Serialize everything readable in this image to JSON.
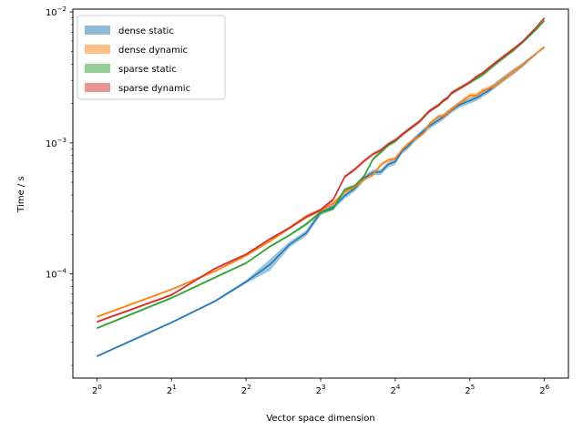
{
  "chart_data": {
    "type": "line",
    "xlabel": "Vector space dimension",
    "ylabel": "Time / s",
    "xscale": "log2",
    "yscale": "log10",
    "xlim": [
      0.8,
      80
    ],
    "ylim": [
      1.6e-05,
      0.0105
    ],
    "x_ticks": [
      {
        "value": 1,
        "base": "2",
        "exp": "0"
      },
      {
        "value": 2,
        "base": "2",
        "exp": "1"
      },
      {
        "value": 4,
        "base": "2",
        "exp": "2"
      },
      {
        "value": 8,
        "base": "2",
        "exp": "3"
      },
      {
        "value": 16,
        "base": "2",
        "exp": "4"
      },
      {
        "value": 32,
        "base": "2",
        "exp": "5"
      },
      {
        "value": 64,
        "base": "2",
        "exp": "6"
      }
    ],
    "y_ticks": [
      {
        "value": 0.0001,
        "base": "10",
        "exp": "−4"
      },
      {
        "value": 0.001,
        "base": "10",
        "exp": "−3"
      },
      {
        "value": 0.01,
        "base": "10",
        "exp": "−2"
      }
    ],
    "grid": false,
    "legend_position": "top-left",
    "series": [
      {
        "name": "dense static",
        "color": "#1f77b4",
        "band_color": "#8fbbd9",
        "x": [
          1,
          2,
          3,
          4,
          5,
          6,
          7,
          8,
          9,
          10,
          11,
          12,
          13,
          14,
          15,
          16,
          17,
          18,
          19,
          20,
          21,
          22,
          23,
          24,
          25,
          26,
          27,
          28,
          29,
          30,
          31,
          32,
          34,
          36,
          38,
          40,
          42,
          44,
          46,
          48,
          52,
          56,
          60,
          64
        ],
        "y": [
          2.35e-05,
          4.25e-05,
          6.2e-05,
          8.7e-05,
          0.000118,
          0.000168,
          0.000205,
          0.000295,
          0.000325,
          0.000395,
          0.00045,
          0.00054,
          0.000595,
          0.0006,
          0.000685,
          0.00072,
          0.00086,
          0.00094,
          0.00105,
          0.00115,
          0.00125,
          0.00135,
          0.00142,
          0.0015,
          0.00158,
          0.00168,
          0.00178,
          0.00186,
          0.00195,
          0.002,
          0.00205,
          0.0021,
          0.0022,
          0.00235,
          0.0025,
          0.0027,
          0.0029,
          0.0031,
          0.0033,
          0.0035,
          0.0039,
          0.0044,
          0.0049,
          0.0054
        ],
        "spread": [
          0.02,
          0.02,
          0.02,
          0.03,
          0.1,
          0.05,
          0.05,
          0.05,
          0.05,
          0.05,
          0.05,
          0.05,
          0.05,
          0.05,
          0.05,
          0.05,
          0.05,
          0.05,
          0.05,
          0.05,
          0.05,
          0.05,
          0.05,
          0.05,
          0.05,
          0.05,
          0.05,
          0.05,
          0.05,
          0.05,
          0.05,
          0.05,
          0.05,
          0.05,
          0.05,
          0.05,
          0.05,
          0.05,
          0.05,
          0.05,
          0.04,
          0.03,
          0.02,
          0.02
        ]
      },
      {
        "name": "dense dynamic",
        "color": "#ff7f0e",
        "band_color": "#ffbf86",
        "x": [
          1,
          2,
          3,
          4,
          5,
          6,
          7,
          8,
          9,
          10,
          11,
          12,
          13,
          14,
          15,
          16,
          17,
          18,
          19,
          20,
          21,
          22,
          23,
          24,
          25,
          26,
          27,
          28,
          29,
          30,
          31,
          32,
          34,
          36,
          38,
          40,
          42,
          44,
          46,
          48,
          52,
          56,
          60,
          64
        ],
        "y": [
          4.7e-05,
          7.6e-05,
          0.000105,
          0.000138,
          0.000178,
          0.000225,
          0.000275,
          0.000305,
          0.000345,
          0.000425,
          0.00046,
          0.00053,
          0.00057,
          0.00068,
          0.00074,
          0.00076,
          0.00088,
          0.00098,
          0.00106,
          0.00112,
          0.0012,
          0.0014,
          0.0015,
          0.0016,
          0.0016,
          0.0017,
          0.0018,
          0.0019,
          0.002,
          0.0021,
          0.0022,
          0.0023,
          0.0023,
          0.0025,
          0.0026,
          0.0027,
          0.0029,
          0.0031,
          0.0033,
          0.0035,
          0.0039,
          0.0044,
          0.0049,
          0.0054
        ],
        "spread": [
          0.02,
          0.02,
          0.02,
          0.02,
          0.02,
          0.03,
          0.03,
          0.03,
          0.03,
          0.03,
          0.03,
          0.03,
          0.03,
          0.03,
          0.03,
          0.03,
          0.03,
          0.03,
          0.03,
          0.03,
          0.03,
          0.03,
          0.03,
          0.03,
          0.04,
          0.04,
          0.04,
          0.04,
          0.04,
          0.04,
          0.04,
          0.04,
          0.04,
          0.04,
          0.04,
          0.04,
          0.04,
          0.04,
          0.04,
          0.04,
          0.03,
          0.02,
          0.02,
          0.02
        ]
      },
      {
        "name": "sparse static",
        "color": "#2ca02c",
        "band_color": "#95cf95",
        "x": [
          1,
          2,
          3,
          4,
          5,
          6,
          7,
          8,
          9,
          10,
          11,
          12,
          13,
          14,
          15,
          16,
          17,
          18,
          19,
          20,
          21,
          22,
          23,
          24,
          25,
          26,
          27,
          28,
          29,
          30,
          31,
          32,
          34,
          36,
          38,
          40,
          42,
          44,
          46,
          48,
          52,
          56,
          60,
          64
        ],
        "y": [
          3.85e-05,
          6.55e-05,
          9.4e-05,
          0.000121,
          0.000162,
          0.000198,
          0.00024,
          0.000295,
          0.000315,
          0.00044,
          0.00047,
          0.00056,
          0.00075,
          0.00085,
          0.00096,
          0.00103,
          0.00115,
          0.00125,
          0.00135,
          0.00145,
          0.0016,
          0.00175,
          0.00185,
          0.00195,
          0.0021,
          0.0022,
          0.0024,
          0.0025,
          0.0026,
          0.0027,
          0.0028,
          0.0029,
          0.0031,
          0.0033,
          0.0036,
          0.0039,
          0.0042,
          0.0045,
          0.0048,
          0.0051,
          0.0058,
          0.0066,
          0.0075,
          0.0086
        ],
        "spread": [
          0.02,
          0.02,
          0.02,
          0.02,
          0.02,
          0.02,
          0.03,
          0.03,
          0.03,
          0.03,
          0.03,
          0.03,
          0.03,
          0.03,
          0.03,
          0.03,
          0.03,
          0.03,
          0.03,
          0.03,
          0.03,
          0.03,
          0.03,
          0.03,
          0.03,
          0.03,
          0.03,
          0.03,
          0.03,
          0.03,
          0.03,
          0.03,
          0.03,
          0.03,
          0.03,
          0.03,
          0.03,
          0.03,
          0.03,
          0.03,
          0.02,
          0.02,
          0.02,
          0.02
        ]
      },
      {
        "name": "sparse dynamic",
        "color": "#d62728",
        "band_color": "#ea9293",
        "x": [
          1,
          2,
          3,
          4,
          5,
          6,
          7,
          8,
          9,
          10,
          11,
          12,
          13,
          14,
          15,
          16,
          17,
          18,
          19,
          20,
          21,
          22,
          23,
          24,
          25,
          26,
          27,
          28,
          29,
          30,
          31,
          32,
          34,
          36,
          38,
          40,
          42,
          44,
          46,
          48,
          52,
          56,
          60,
          64
        ],
        "y": [
          4.3e-05,
          6.9e-05,
          0.00011,
          0.000141,
          0.000185,
          0.000225,
          0.000272,
          0.000308,
          0.00037,
          0.00055,
          0.00063,
          0.00073,
          0.00082,
          0.00088,
          0.00098,
          0.00105,
          0.00115,
          0.00125,
          0.00135,
          0.00145,
          0.0016,
          0.00175,
          0.00185,
          0.00195,
          0.0021,
          0.0022,
          0.0024,
          0.0025,
          0.0026,
          0.0027,
          0.0028,
          0.0029,
          0.0032,
          0.0034,
          0.0037,
          0.004,
          0.0043,
          0.0046,
          0.0049,
          0.0052,
          0.0059,
          0.0068,
          0.0078,
          0.009
        ],
        "spread": [
          0.02,
          0.02,
          0.02,
          0.02,
          0.02,
          0.02,
          0.03,
          0.03,
          0.03,
          0.03,
          0.03,
          0.03,
          0.03,
          0.03,
          0.03,
          0.03,
          0.03,
          0.03,
          0.03,
          0.03,
          0.03,
          0.03,
          0.03,
          0.03,
          0.03,
          0.03,
          0.03,
          0.03,
          0.03,
          0.03,
          0.03,
          0.03,
          0.03,
          0.03,
          0.03,
          0.03,
          0.03,
          0.03,
          0.03,
          0.03,
          0.02,
          0.02,
          0.02,
          0.02
        ]
      }
    ]
  }
}
